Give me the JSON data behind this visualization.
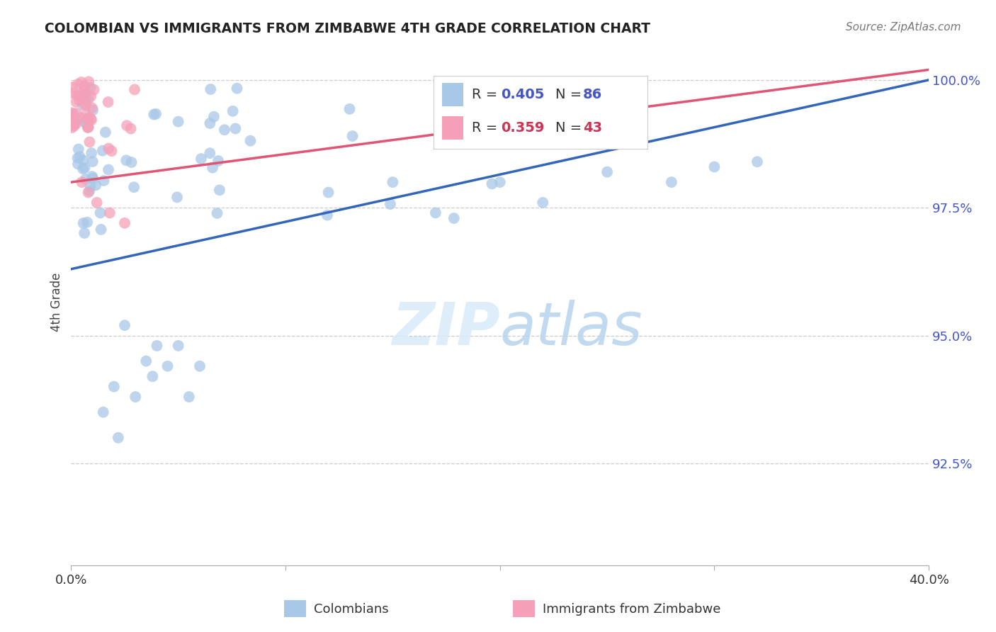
{
  "title": "COLOMBIAN VS IMMIGRANTS FROM ZIMBABWE 4TH GRADE CORRELATION CHART",
  "source": "Source: ZipAtlas.com",
  "ylabel": "4th Grade",
  "legend_blue_R": "0.405",
  "legend_blue_N": "86",
  "legend_pink_R": "0.359",
  "legend_pink_N": "43",
  "legend_label_blue": "Colombians",
  "legend_label_pink": "Immigrants from Zimbabwe",
  "watermark_zip": "ZIP",
  "watermark_atlas": "atlas",
  "blue_color": "#a8c8e8",
  "blue_line_color": "#3366bb",
  "pink_color": "#f5a0b8",
  "pink_line_color": "#e05575",
  "background_color": "#ffffff",
  "grid_color": "#cccccc",
  "ytick_color": "#4455cc",
  "xlim": [
    0.0,
    0.4
  ],
  "ylim": [
    0.905,
    1.008
  ],
  "yticks": [
    0.925,
    0.95,
    0.975,
    1.0
  ],
  "ytick_labels": [
    "92.5%",
    "95.0%",
    "97.5%",
    "100.0%"
  ],
  "xtick_positions": [
    0.0,
    0.1,
    0.2,
    0.3,
    0.4
  ],
  "xtick_labels": [
    "0.0%",
    "",
    "",
    "",
    "40.0%"
  ]
}
